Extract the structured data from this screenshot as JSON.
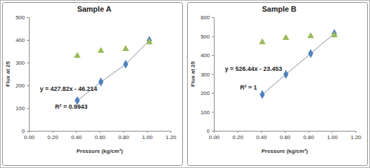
{
  "chart_data": [
    {
      "type": "scatter",
      "title": "Sample A",
      "x_label": "Pressure (kg/cm²)",
      "y_label": "Flux at 25",
      "x": [
        0.41,
        0.61,
        0.82,
        1.02
      ],
      "series": [
        {
          "color": "#4f81bd",
          "marker": "diamond",
          "line_style": "solid",
          "values": [
            133,
            215,
            293,
            398
          ]
        },
        {
          "color": "#9bbb59",
          "marker": "triangle",
          "line_style": "none",
          "values": [
            330,
            352,
            360,
            390
          ]
        }
      ],
      "annotations": [
        {
          "text": "y = 427.82x - 46.214"
        },
        {
          "text": "R² = 0.9943"
        }
      ],
      "xlim": [
        0,
        1.2
      ],
      "xticks": [
        {
          "value": 0,
          "label": "0.00"
        },
        {
          "value": 0.2,
          "label": "0.20"
        },
        {
          "value": 0.4,
          "label": "0.40"
        },
        {
          "value": 0.6,
          "label": "0.60"
        },
        {
          "value": 0.8,
          "label": "0.80"
        },
        {
          "value": 1.0,
          "label": "1.00"
        },
        {
          "value": 1.2,
          "label": "1.20"
        }
      ],
      "ylim": [
        0,
        500
      ],
      "yticks": [
        0,
        100,
        200,
        300,
        400,
        500
      ],
      "grid": false
    },
    {
      "type": "scatter",
      "title": "Sample B",
      "x_label": "Pressure (kg/cm²)",
      "y_label": "Flux at 25",
      "x": [
        0.41,
        0.61,
        0.82,
        1.02
      ],
      "series": [
        {
          "color": "#4f81bd",
          "marker": "diamond",
          "line_style": "solid",
          "values": [
            192,
            298,
            408,
            514
          ]
        },
        {
          "color": "#9bbb59",
          "marker": "triangle",
          "line_style": "none",
          "values": [
            468,
            490,
            500,
            505
          ]
        }
      ],
      "annotations": [
        {
          "text": "y = 526.44x - 23.453"
        },
        {
          "text": "R² = 1"
        }
      ],
      "xlim": [
        0,
        1.2
      ],
      "xticks": [
        {
          "value": 0,
          "label": "0.00"
        },
        {
          "value": 0.2,
          "label": "0.20"
        },
        {
          "value": 0.4,
          "label": "0.40"
        },
        {
          "value": 0.6,
          "label": "0.60"
        },
        {
          "value": 0.8,
          "label": "0.80"
        },
        {
          "value": 1.0,
          "label": "1.00"
        },
        {
          "value": 1.2,
          "label": "1.20"
        }
      ],
      "ylim": [
        0,
        600
      ],
      "yticks": [
        0,
        100,
        200,
        300,
        400,
        500,
        600
      ],
      "grid": false
    }
  ]
}
